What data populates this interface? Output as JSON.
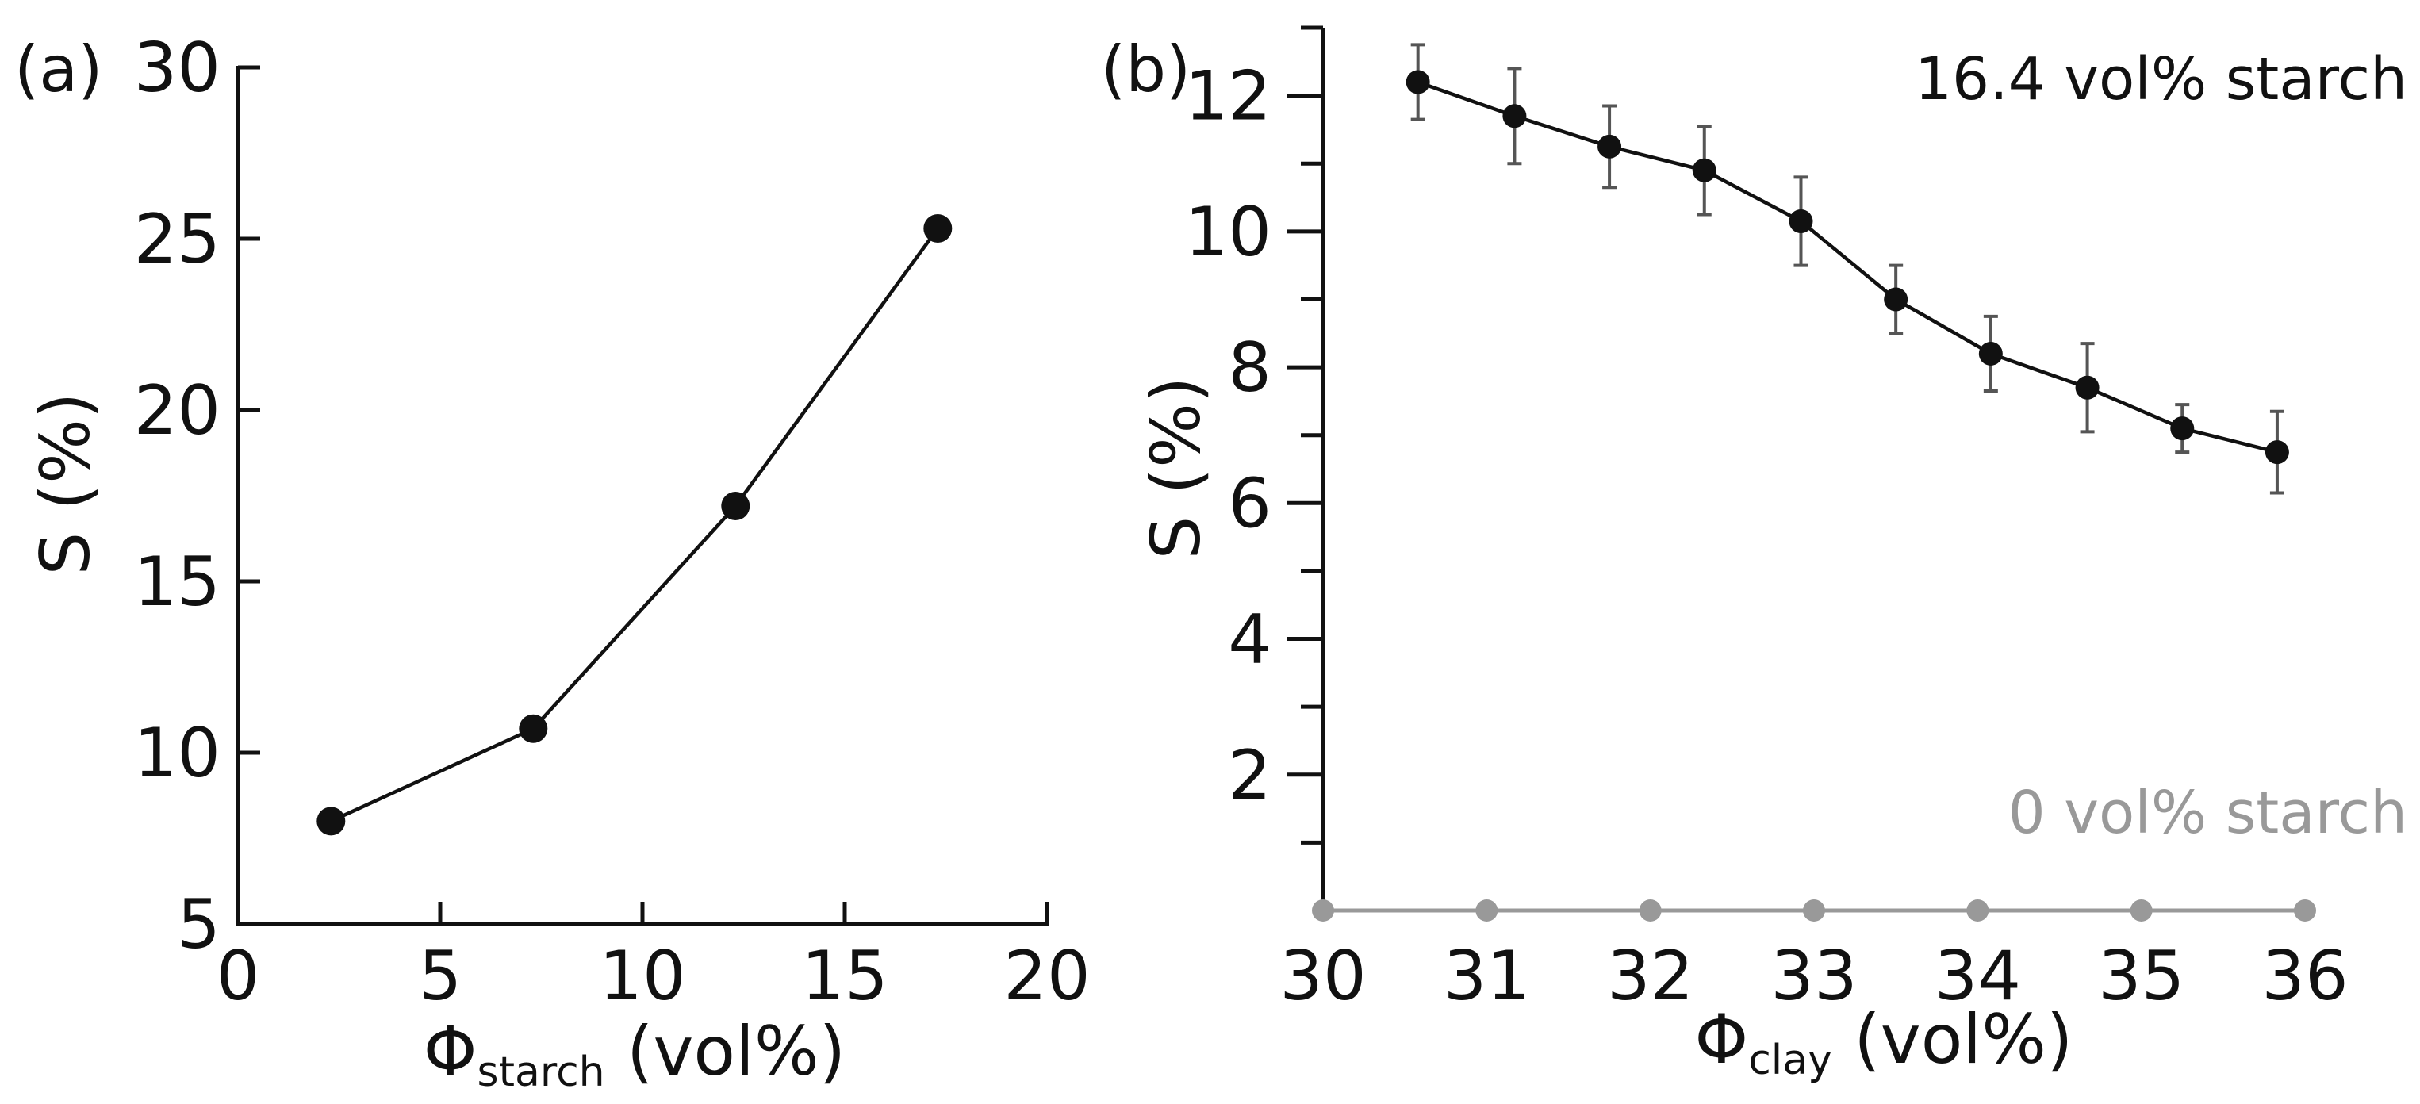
{
  "chart_data": [
    {
      "panel": "(a)",
      "type": "line",
      "xlabel_symbol": "Φ",
      "xlabel_subscript": "starch",
      "xlabel_unit": " (vol%)",
      "ylabel": "S (%)",
      "xlim": [
        0,
        20
      ],
      "ylim": [
        5,
        30
      ],
      "xticks": [
        0,
        5,
        10,
        15,
        20
      ],
      "yticks": [
        5,
        10,
        15,
        20,
        25,
        30
      ],
      "series": [
        {
          "name": "S vs starch",
          "color": "#111111",
          "x": [
            2.3,
            7.3,
            12.3,
            17.3
          ],
          "y": [
            8.0,
            10.7,
            17.2,
            25.3
          ]
        }
      ]
    },
    {
      "panel": "(b)",
      "type": "line",
      "xlabel_symbol": "Φ",
      "xlabel_subscript": "clay",
      "xlabel_unit": " (vol%)",
      "ylabel": "S (%)",
      "xlim": [
        30,
        36
      ],
      "ylim": [
        0,
        13
      ],
      "xticks": [
        30,
        31,
        32,
        33,
        34,
        35,
        36
      ],
      "yticks": [
        2,
        4,
        6,
        8,
        10,
        12
      ],
      "yminor": [
        1,
        3,
        5,
        7,
        9,
        11,
        13
      ],
      "annotations": [
        {
          "text": "16.4 vol% starch",
          "color": "#111111"
        },
        {
          "text": "0 vol% starch",
          "color": "#999999"
        }
      ],
      "series": [
        {
          "name": "16.4 vol% starch",
          "color": "#111111",
          "x": [
            30.58,
            31.17,
            31.75,
            32.33,
            32.92,
            33.5,
            34.08,
            34.67,
            35.25,
            35.83
          ],
          "y": [
            12.2,
            11.7,
            11.25,
            10.9,
            10.15,
            9.0,
            8.2,
            7.7,
            7.1,
            6.75
          ],
          "err": [
            0.55,
            0.7,
            0.6,
            0.65,
            0.65,
            0.5,
            0.55,
            0.65,
            0.35,
            0.6
          ]
        },
        {
          "name": "0 vol% starch",
          "color": "#999999",
          "x": [
            30,
            31,
            32,
            33,
            34,
            35,
            36
          ],
          "y": [
            0,
            0,
            0,
            0,
            0,
            0,
            0
          ]
        }
      ]
    }
  ]
}
